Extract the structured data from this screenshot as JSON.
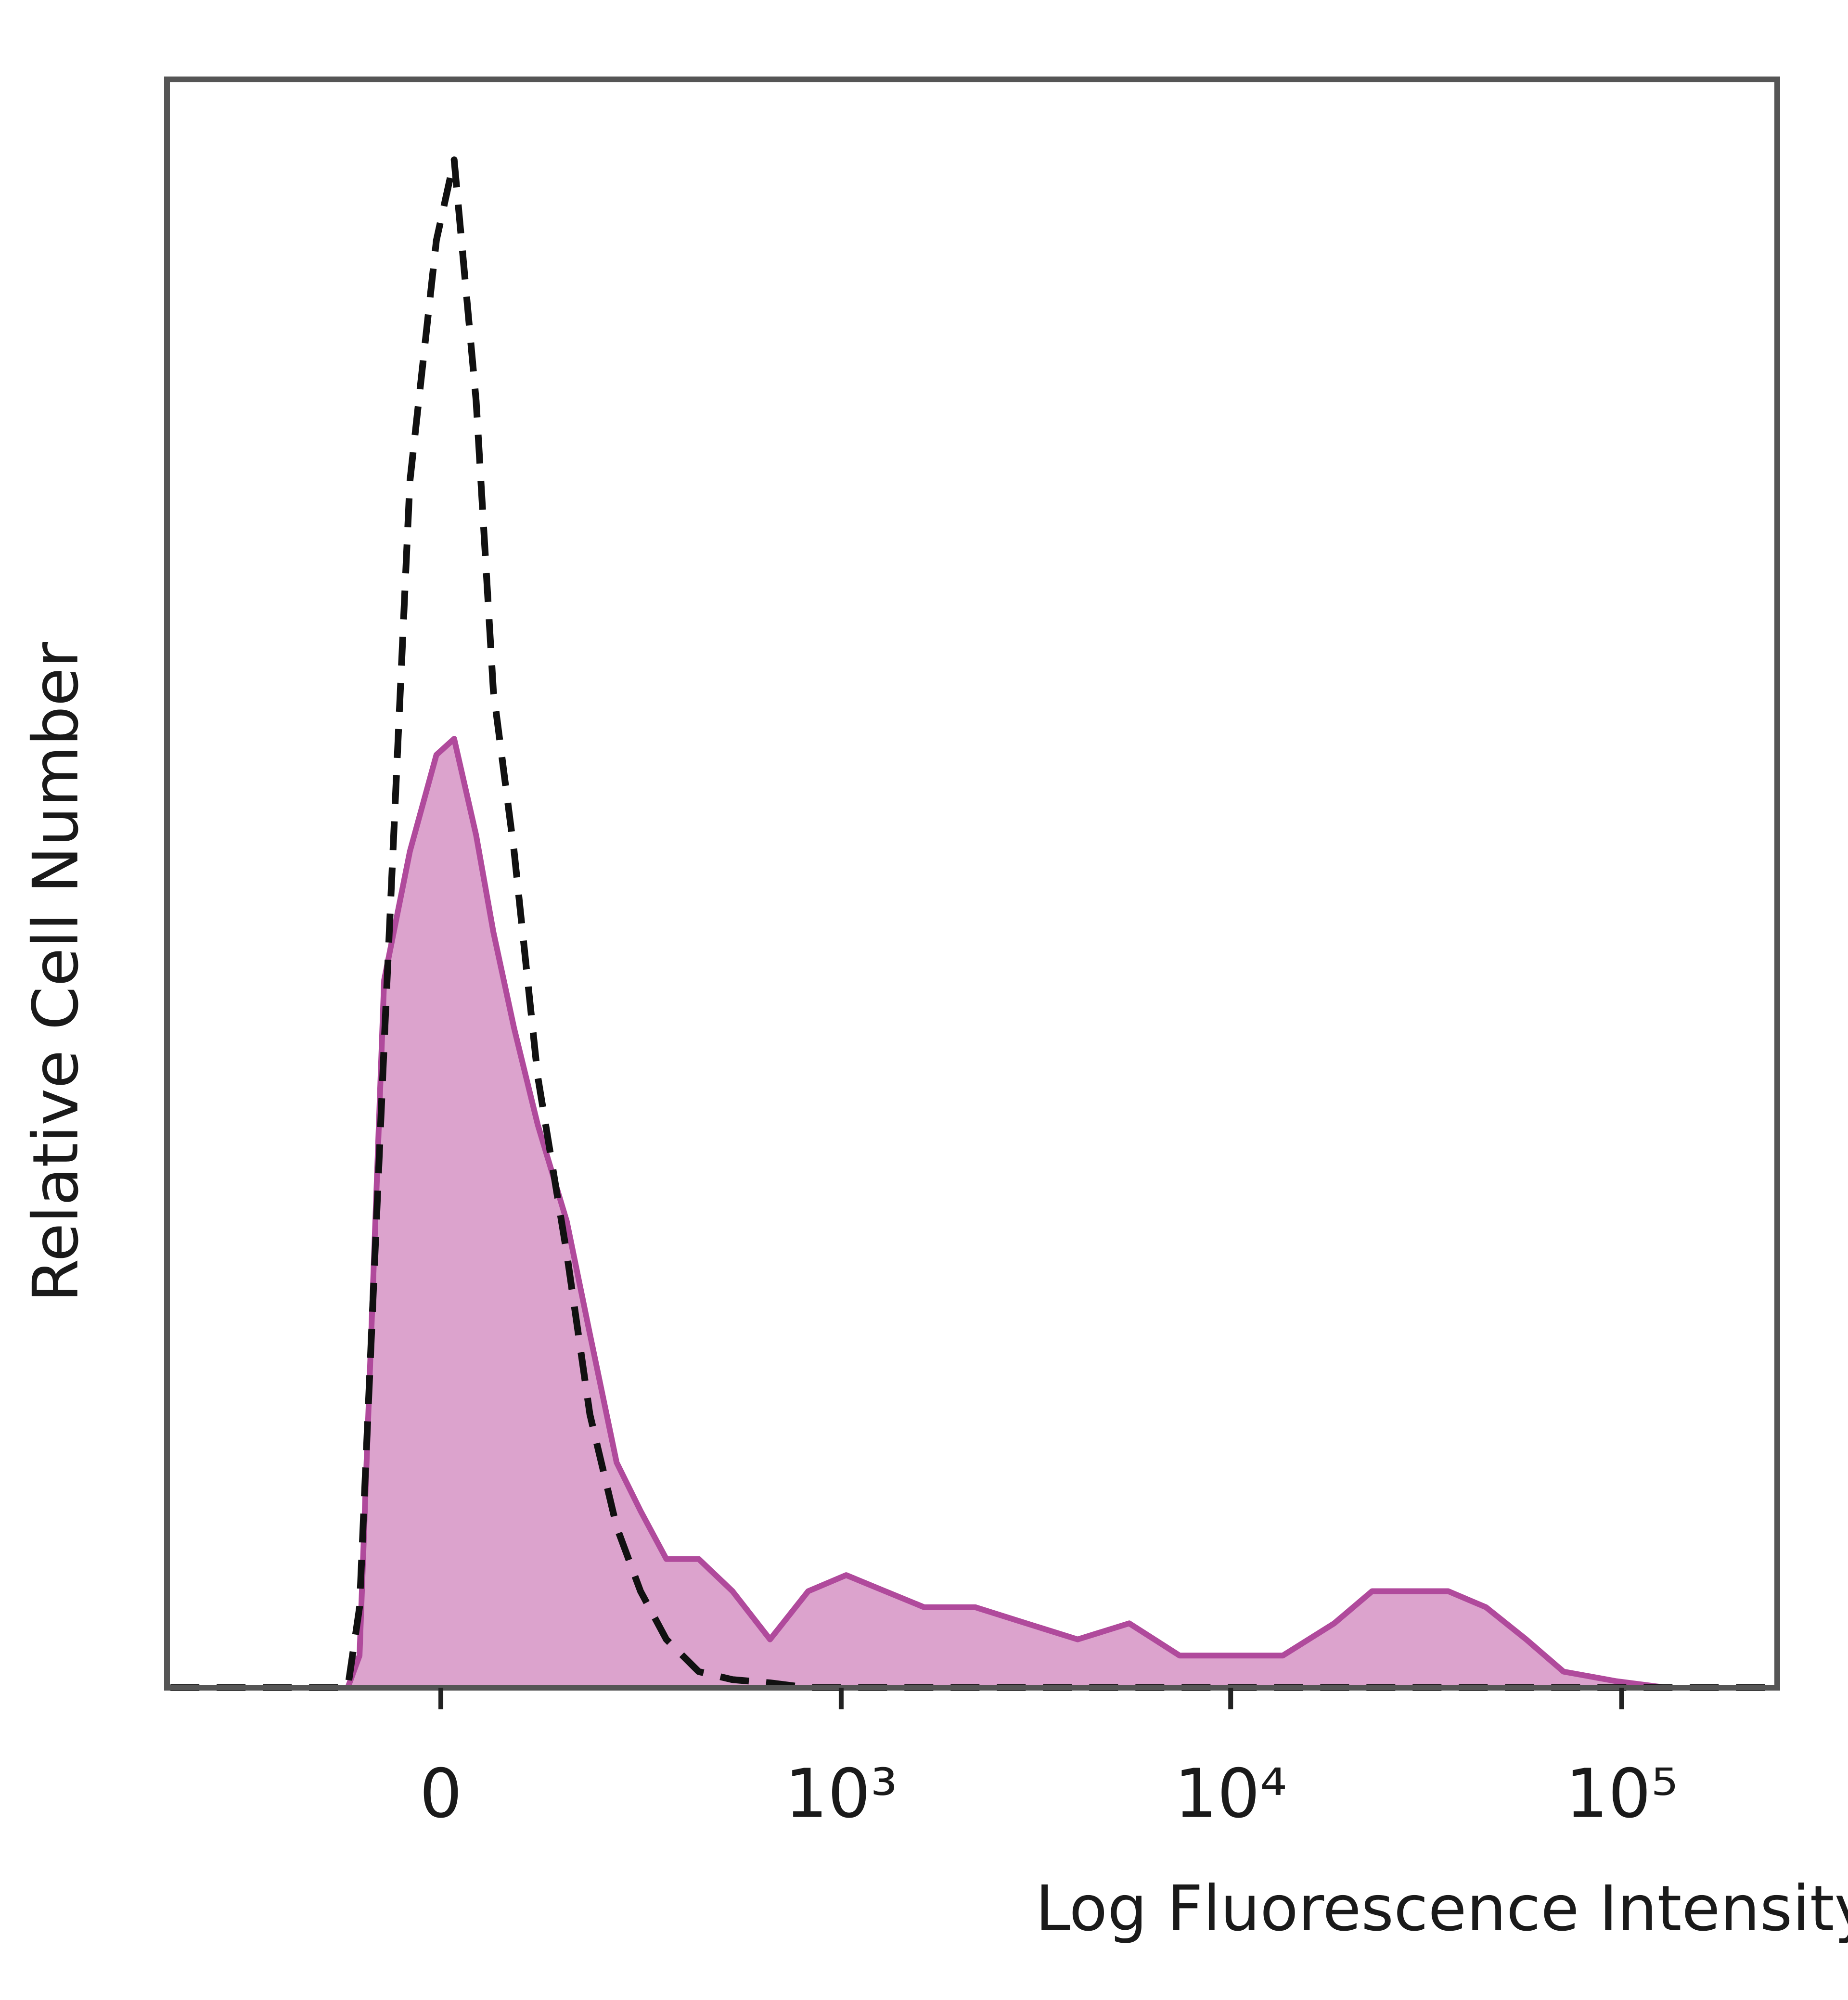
{
  "chart_data": {
    "type": "histogram-overlay",
    "x_label": "Log Fluorescence Intensity",
    "y_label": "Relative Cell Number",
    "xscale": "biexponential",
    "xlim": [
      -460,
      250000
    ],
    "ylim": [
      0,
      100
    ],
    "xticks": [
      0,
      {
        "value": 1000,
        "label": "10³"
      },
      {
        "value": 10000,
        "label": "10⁴"
      },
      {
        "value": 100000,
        "label": "10⁵"
      }
    ],
    "x": [
      -450,
      -110,
      -95,
      -65,
      -35,
      -5,
      15,
      40,
      60,
      85,
      115,
      155,
      190,
      235,
      280,
      335,
      415,
      515,
      650,
      820,
      1030,
      1300,
      1640,
      2220,
      3000,
      4060,
      5500,
      7400,
      10000,
      13600,
      18400,
      23000,
      29000,
      36000,
      45000,
      57000,
      71000,
      97000,
      130000,
      240000
    ],
    "series": [
      {
        "style": "filled",
        "color": "#b04a9c",
        "fill": "#dca3cd",
        "values": [
          0,
          0,
          2,
          44,
          52,
          58,
          59,
          53,
          47,
          41,
          35,
          29,
          22,
          14,
          11,
          8,
          8,
          6,
          3,
          6,
          7,
          6,
          5,
          5,
          4,
          3,
          4,
          2,
          2,
          2,
          4,
          6,
          6,
          6,
          5,
          3,
          1,
          0.4,
          0,
          0
        ]
      },
      {
        "style": "dashed",
        "color": "#111111",
        "values": [
          0,
          0,
          5,
          40,
          75,
          90,
          95,
          80,
          62,
          52,
          38,
          27,
          17,
          10,
          6,
          3,
          1,
          0.5,
          0.3,
          0,
          0,
          0,
          0,
          0,
          0,
          0,
          0,
          0,
          0,
          0,
          0,
          0,
          0,
          0,
          0,
          0,
          0,
          0,
          0,
          0
        ]
      }
    ]
  }
}
